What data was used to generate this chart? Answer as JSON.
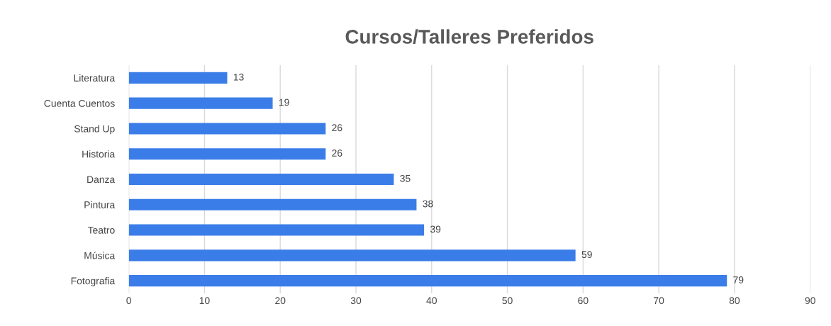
{
  "chart_data": {
    "type": "bar",
    "orientation": "horizontal",
    "title": "Cursos/Talleres Preferidos",
    "categories": [
      "Literatura",
      "Cuenta Cuentos",
      "Stand Up",
      "Historia",
      "Danza",
      "Pintura",
      "Teatro",
      "Música",
      "Fotografia"
    ],
    "values": [
      13,
      19,
      26,
      26,
      35,
      38,
      39,
      59,
      79
    ],
    "color": "#3b7de8",
    "xlim": [
      0,
      90
    ],
    "xticks": [
      0,
      10,
      20,
      30,
      40,
      50,
      60,
      70,
      80,
      90
    ],
    "grid": "x",
    "data_labels": true
  }
}
